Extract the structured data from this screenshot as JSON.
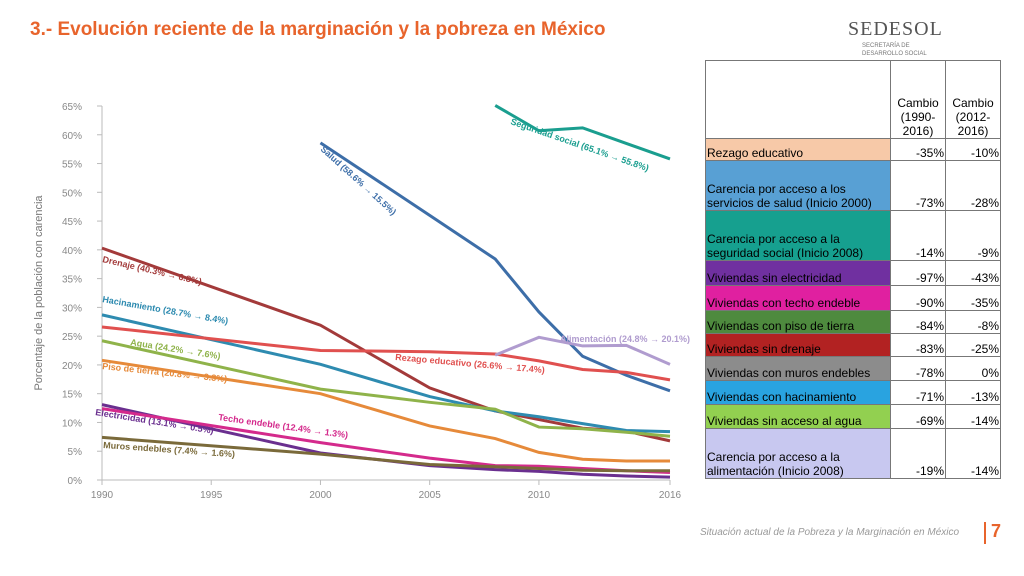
{
  "header": {
    "title": "3.- Evolución reciente de la marginación y la pobreza en México",
    "logo": "SEDESOL",
    "logo_sub": "SECRETARÍA DE DESARROLLO SOCIAL"
  },
  "footer": {
    "text": "Situación actual de la Pobreza y la Marginación en México",
    "page": "7"
  },
  "chart_data": {
    "type": "line",
    "y_label": "Porcentaje de la población con carencia",
    "x": [
      1990,
      2000,
      2005,
      2008,
      2010,
      2012,
      2014,
      2016
    ],
    "xlim": [
      1990,
      2016
    ],
    "xticks": [
      1990,
      1995,
      2000,
      2005,
      2010,
      2016
    ],
    "ylim": [
      0,
      65
    ],
    "yticks": [
      {
        "value": 0,
        "label": "0%"
      },
      {
        "value": 5,
        "label": "5%"
      },
      {
        "value": 10,
        "label": "10%"
      },
      {
        "value": 15,
        "label": "15%"
      },
      {
        "value": 20,
        "label": "20%"
      },
      {
        "value": 25,
        "label": "25%"
      },
      {
        "value": 30,
        "label": "30%"
      },
      {
        "value": 35,
        "label": "35%"
      },
      {
        "value": 40,
        "label": "40%"
      },
      {
        "value": 45,
        "label": "45%"
      },
      {
        "value": 50,
        "label": "50%"
      },
      {
        "value": 55,
        "label": "55%"
      },
      {
        "value": 60,
        "label": "60%"
      },
      {
        "value": 65,
        "label": "65%"
      }
    ],
    "series": [
      {
        "name": "Seguridad social (65.1% → 55.8%)",
        "color": "#1a9e8f",
        "values": [
          null,
          null,
          null,
          65.1,
          60.7,
          61.2,
          58.5,
          55.8
        ]
      },
      {
        "name": "Salud (58.6% → 15.5%)",
        "color": "#3d6ea8",
        "values": [
          null,
          58.6,
          46,
          38.4,
          29.2,
          21.5,
          18.2,
          15.5
        ]
      },
      {
        "name": "Drenaje (40.3% → 6.8%)",
        "color": "#a33a3a",
        "values": [
          40.3,
          26.9,
          16,
          12,
          10.5,
          9,
          8.5,
          6.8
        ]
      },
      {
        "name": "Hacinamiento (28.7% → 8.4%)",
        "color": "#2e8bb0",
        "values": [
          28.7,
          20.1,
          14.5,
          12,
          11,
          9.8,
          8.6,
          8.4
        ]
      },
      {
        "name": "Rezago educativo (26.6% → 17.4%)",
        "color": "#e0504f",
        "values": [
          26.6,
          22.5,
          22.3,
          21.9,
          20.7,
          19.2,
          18.7,
          17.4
        ]
      },
      {
        "name": "Alimentación (24.8% → 20.1%)",
        "color": "#b09ccf",
        "values": [
          null,
          null,
          null,
          21.7,
          24.8,
          23.3,
          23.4,
          20.1
        ]
      },
      {
        "name": "Agua (24.2% → 7.6%)",
        "color": "#8fb34a",
        "values": [
          24.2,
          15.8,
          13.5,
          12.3,
          9.2,
          8.9,
          8.3,
          7.6
        ]
      },
      {
        "name": "Piso de tierra (20.8% → 3.3%)",
        "color": "#e68a3a",
        "values": [
          20.8,
          15,
          9.4,
          7.2,
          4.8,
          3.6,
          3.3,
          3.3
        ]
      },
      {
        "name": "Electricidad (13.1% → 0.5%)",
        "color": "#6a2f8f",
        "values": [
          13.1,
          4.7,
          2.5,
          1.8,
          1.5,
          1,
          0.7,
          0.5
        ]
      },
      {
        "name": "Techo endeble (12.4% → 1.3%)",
        "color": "#d42a8c",
        "values": [
          12.4,
          6.5,
          3.8,
          2.5,
          2.4,
          2,
          1.6,
          1.3
        ]
      },
      {
        "name": "Muros endebles (7.4% → 1.6%)",
        "color": "#7a6a3a",
        "values": [
          7.4,
          4.5,
          2.7,
          2.3,
          2,
          1.7,
          1.6,
          1.6
        ]
      }
    ]
  },
  "table": {
    "header": [
      "Cambio (1990-2016)",
      "Cambio (2012-2016)"
    ],
    "rows": [
      {
        "label": "Rezago educativo",
        "color": "#f7c9a8",
        "cells": [
          "-35%",
          "-10%"
        ]
      },
      {
        "label": "Carencia por acceso a los servicios de salud (Inicio 2000)",
        "color": "#58a0d4",
        "cells": [
          "-73%",
          "-28%"
        ]
      },
      {
        "label": "Carencia por acceso a la seguridad social (Inicio 2008)",
        "color": "#16a08f",
        "cells": [
          "-14%",
          "-9%"
        ]
      },
      {
        "label": "Viviendas sin electricidad",
        "color": "#7030a0",
        "cells": [
          "-97%",
          "-43%"
        ]
      },
      {
        "label": "Viviendas con techo endeble",
        "color": "#e020a0",
        "cells": [
          "-90%",
          "-35%"
        ]
      },
      {
        "label": "Viviendas con piso de tierra",
        "color": "#4e8a3e",
        "cells": [
          "-84%",
          "-8%"
        ]
      },
      {
        "label": "Viviendas sin drenaje",
        "color": "#b22222",
        "cells": [
          "-83%",
          "-25%"
        ]
      },
      {
        "label": "Viviendas con muros endebles",
        "color": "#8c8c8c",
        "cells": [
          "-78%",
          "0%"
        ]
      },
      {
        "label": "Viviendas con hacinamiento",
        "color": "#29a3e0",
        "cells": [
          "-71%",
          "-13%"
        ]
      },
      {
        "label": "Viviendas sin acceso al agua",
        "color": "#92d050",
        "cells": [
          "-69%",
          "-14%"
        ]
      },
      {
        "label": "Carencia por acceso a la alimentación (Inicio 2008)",
        "color": "#c8c8f0",
        "cells": [
          "-19%",
          "-14%"
        ]
      }
    ]
  }
}
